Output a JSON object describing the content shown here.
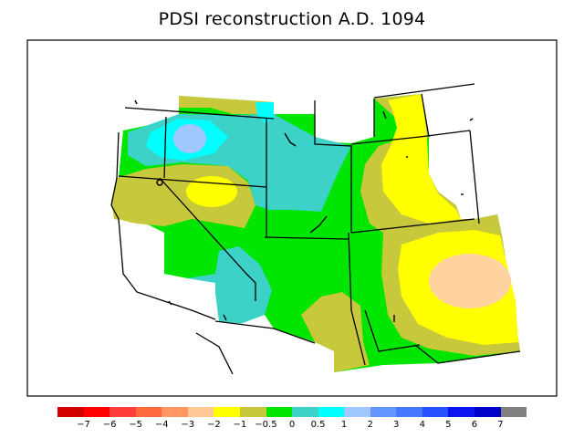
{
  "title": "PDSI reconstruction A.D. 1094",
  "colors": {
    "dry_extreme": "#d40000",
    "dry_strong": "#ff3b3b",
    "dry_mod": "#ff8a5a",
    "dry_mild": "#ffbf80",
    "dry_light": "#ffd3a0",
    "yellow": "#ffff00",
    "olive": "#c8c83c",
    "green": "#00e600",
    "teal": "#3cd2c8",
    "cyan": "#00ffff",
    "lightblue": "#a0c8ff",
    "blue_mod": "#6496ff",
    "blue": "#3264ff",
    "blue_strong": "#1e3cff",
    "blue_deep": "#1414e6",
    "navy": "#0000c8",
    "grey": "#808080"
  },
  "legend": {
    "swatches": [
      "#d40000",
      "#ff0000",
      "#ff3b3b",
      "#ff6a3c",
      "#ff9664",
      "#ffc896",
      "#ffff00",
      "#c8c83c",
      "#00e600",
      "#3cd2c8",
      "#00ffff",
      "#a0c8ff",
      "#6496ff",
      "#4678ff",
      "#2850ff",
      "#0a14f0",
      "#0000c8",
      "#808080"
    ],
    "ticks": [
      "−7",
      "−6",
      "−5",
      "−4",
      "−3",
      "−2",
      "−1",
      "−0.5",
      "0",
      "0.5",
      "1",
      "2",
      "3",
      "4",
      "5",
      "6",
      "7"
    ]
  }
}
